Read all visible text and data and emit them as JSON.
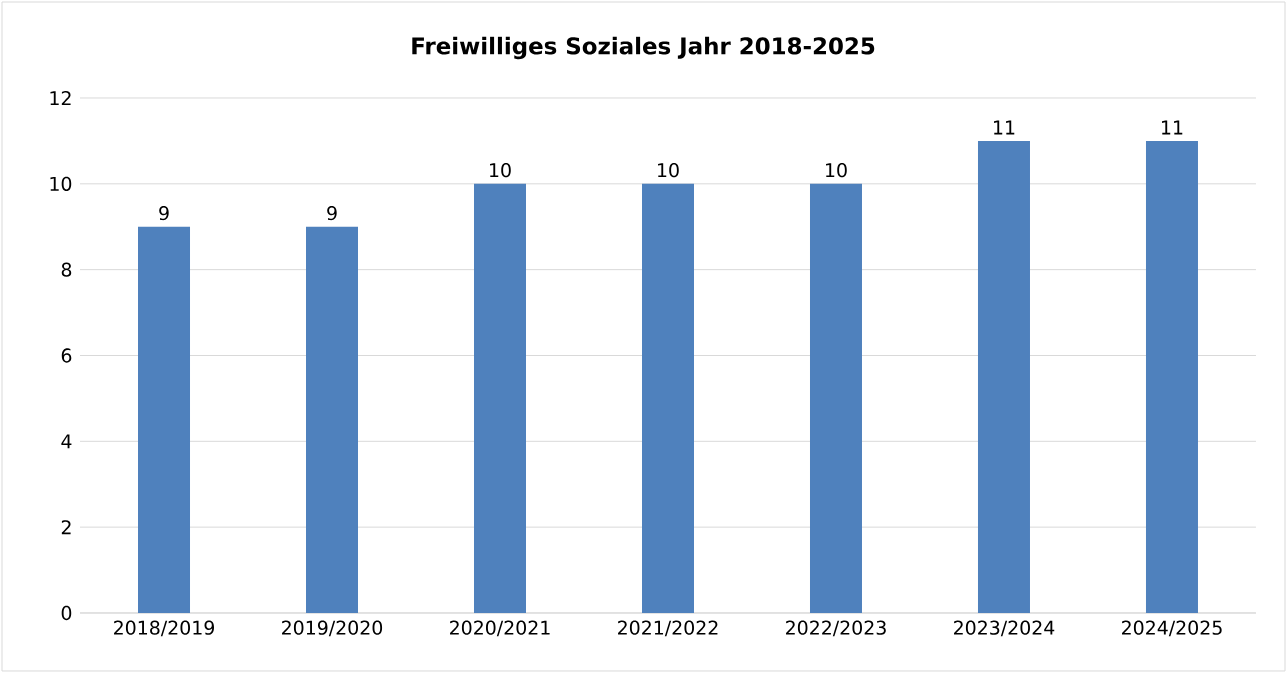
{
  "chart_data": {
    "type": "bar",
    "title": "Freiwilliges Soziales Jahr 2018-2025",
    "categories": [
      "2018/2019",
      "2019/2020",
      "2020/2021",
      "2021/2022",
      "2022/2023",
      "2023/2024",
      "2024/2025"
    ],
    "values": [
      9,
      9,
      10,
      10,
      10,
      11,
      11
    ],
    "color": "#4f81bd",
    "ylim": [
      0,
      12
    ],
    "yticks": [
      0,
      2,
      4,
      6,
      8,
      10,
      12
    ],
    "grid": "y",
    "data_labels": true
  }
}
